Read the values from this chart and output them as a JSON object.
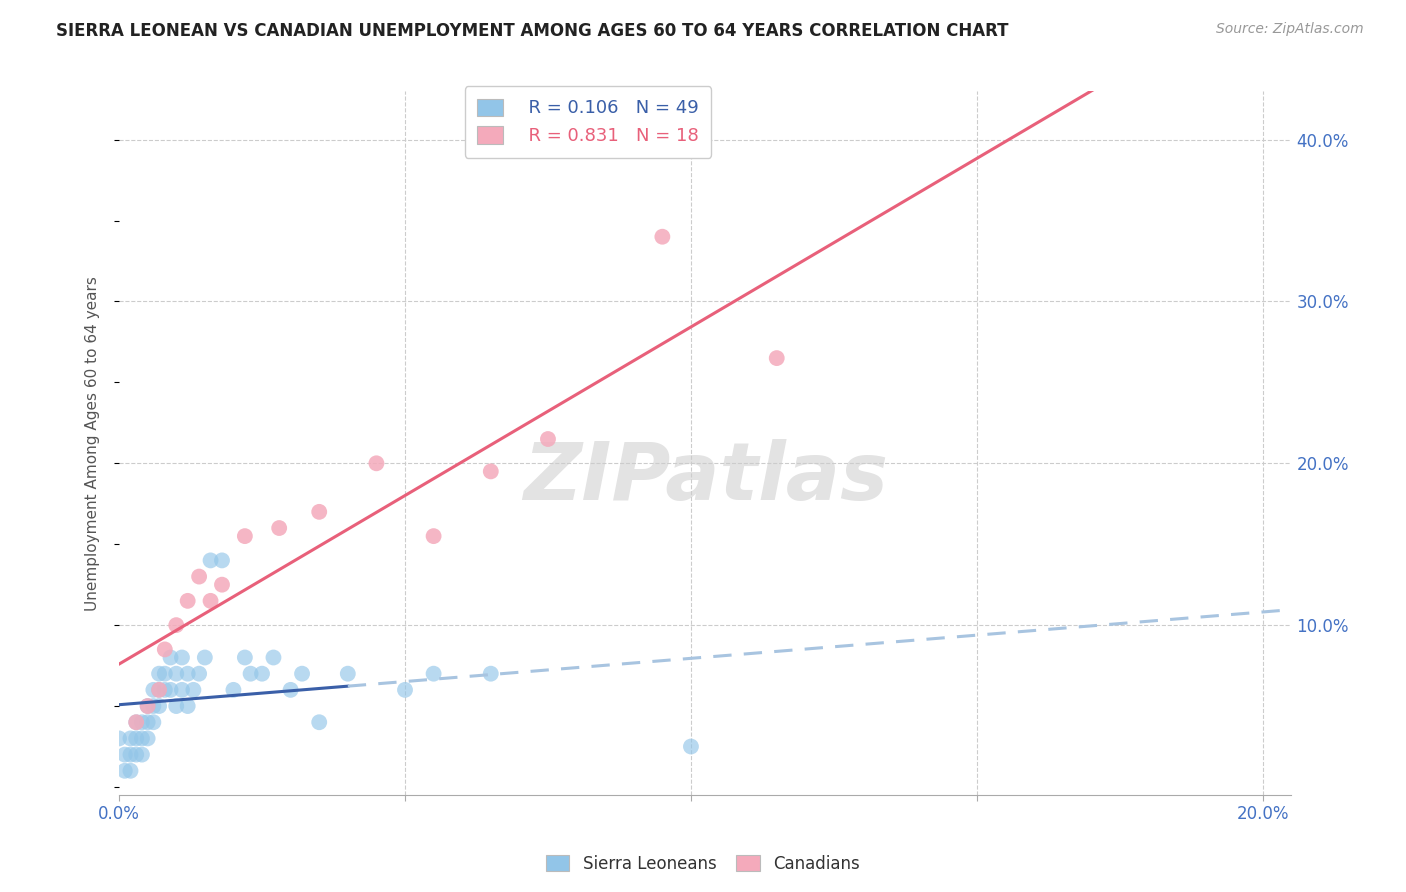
{
  "title": "SIERRA LEONEAN VS CANADIAN UNEMPLOYMENT AMONG AGES 60 TO 64 YEARS CORRELATION CHART",
  "source": "Source: ZipAtlas.com",
  "ylabel": "Unemployment Among Ages 60 to 64 years",
  "xlim": [
    0.0,
    0.205
  ],
  "ylim": [
    -0.005,
    0.43
  ],
  "legend_blue_R": "R = 0.106",
  "legend_blue_N": "N = 49",
  "legend_pink_R": "R = 0.831",
  "legend_pink_N": "N = 18",
  "blue_color": "#92C5E8",
  "pink_color": "#F4AABB",
  "trendline_blue_solid": "#3A5FA8",
  "trendline_blue_dashed": "#A8C4E0",
  "trendline_pink": "#E8607A",
  "watermark": "ZIPatlas",
  "blue_scatter_x": [
    0.0,
    0.001,
    0.001,
    0.002,
    0.002,
    0.002,
    0.003,
    0.003,
    0.003,
    0.004,
    0.004,
    0.004,
    0.005,
    0.005,
    0.005,
    0.006,
    0.006,
    0.006,
    0.007,
    0.007,
    0.007,
    0.008,
    0.008,
    0.009,
    0.009,
    0.01,
    0.01,
    0.011,
    0.011,
    0.012,
    0.012,
    0.013,
    0.014,
    0.015,
    0.016,
    0.018,
    0.02,
    0.022,
    0.023,
    0.025,
    0.027,
    0.03,
    0.032,
    0.035,
    0.04,
    0.05,
    0.055,
    0.065,
    0.1
  ],
  "blue_scatter_y": [
    0.03,
    0.02,
    0.01,
    0.03,
    0.02,
    0.01,
    0.04,
    0.03,
    0.02,
    0.04,
    0.03,
    0.02,
    0.05,
    0.04,
    0.03,
    0.06,
    0.05,
    0.04,
    0.07,
    0.06,
    0.05,
    0.07,
    0.06,
    0.08,
    0.06,
    0.07,
    0.05,
    0.08,
    0.06,
    0.07,
    0.05,
    0.06,
    0.07,
    0.08,
    0.14,
    0.14,
    0.06,
    0.08,
    0.07,
    0.07,
    0.08,
    0.06,
    0.07,
    0.04,
    0.07,
    0.06,
    0.07,
    0.07,
    0.025
  ],
  "pink_scatter_x": [
    0.003,
    0.005,
    0.007,
    0.008,
    0.01,
    0.012,
    0.014,
    0.016,
    0.018,
    0.022,
    0.028,
    0.035,
    0.045,
    0.055,
    0.065,
    0.075,
    0.095,
    0.115
  ],
  "pink_scatter_y": [
    0.04,
    0.05,
    0.06,
    0.085,
    0.1,
    0.115,
    0.13,
    0.115,
    0.125,
    0.155,
    0.16,
    0.17,
    0.2,
    0.155,
    0.195,
    0.215,
    0.34,
    0.265
  ]
}
